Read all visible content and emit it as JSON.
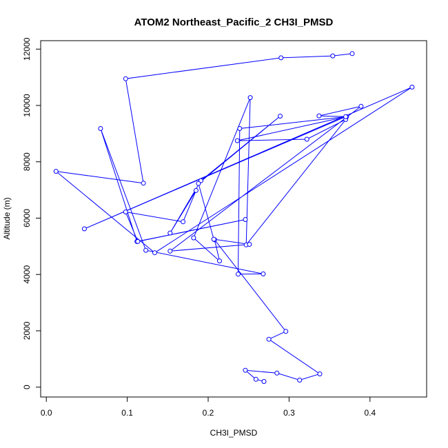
{
  "chart_data": {
    "type": "line",
    "title": "ATOM2 Northeast_Pacific_2 CH3I_PMSD",
    "xlabel": "CH3I_PMSD",
    "ylabel": "Altitude (m)",
    "xlim": [
      -0.007,
      0.47
    ],
    "ylim": [
      -350,
      12300
    ],
    "xticks": [
      0.0,
      0.1,
      0.2,
      0.3,
      0.4
    ],
    "xtick_labels": [
      "0.0",
      "0.1",
      "0.2",
      "0.3",
      "0.4"
    ],
    "yticks": [
      0,
      2000,
      4000,
      6000,
      8000,
      10000,
      12000
    ],
    "ytick_labels": [
      "0",
      "2000",
      "4000",
      "6000",
      "8000",
      "10000",
      "12000"
    ],
    "grid": false,
    "color": "#0000ff",
    "x": [
      0.269,
      0.259,
      0.246,
      0.285,
      0.313,
      0.338,
      0.275,
      0.296,
      0.208,
      0.214,
      0.182,
      0.252,
      0.247,
      0.37,
      0.322,
      0.236,
      0.371,
      0.239,
      0.237,
      0.268,
      0.123,
      0.067,
      0.112,
      0.246,
      0.113,
      0.098,
      0.169,
      0.185,
      0.153,
      0.191,
      0.289,
      0.188,
      0.207,
      0.251,
      0.153,
      0.389,
      0.337,
      0.37,
      0.047,
      0.452,
      0.134,
      0.012,
      0.12,
      0.098,
      0.29,
      0.354,
      0.378
    ],
    "y": [
      200,
      280,
      600,
      500,
      250,
      470,
      1700,
      1980,
      5230,
      4480,
      5300,
      10280,
      5050,
      9500,
      8800,
      8750,
      9600,
      9180,
      4010,
      4020,
      4860,
      9180,
      5170,
      5950,
      5170,
      6220,
      5870,
      6980,
      5470,
      7330,
      9620,
      7230,
      5250,
      5070,
      4830,
      9970,
      9630,
      9600,
      5620,
      10650,
      4770,
      7660,
      7240,
      10950,
      11690,
      11760,
      11840
    ]
  }
}
